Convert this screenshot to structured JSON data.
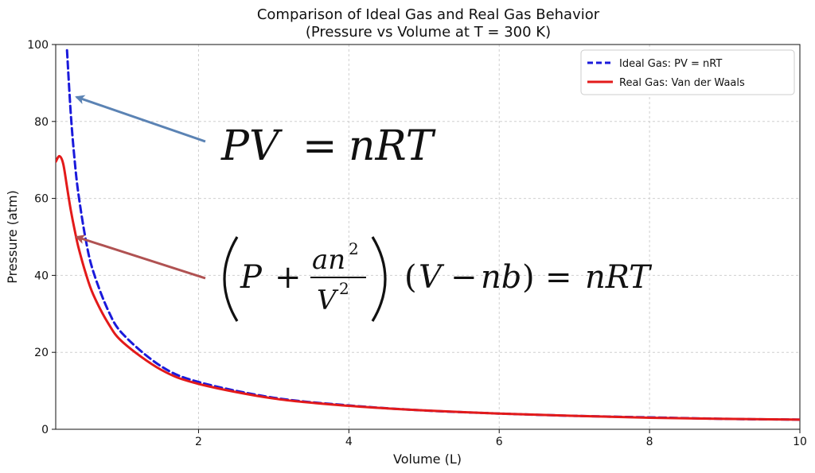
{
  "chart_data": {
    "type": "line",
    "title": "Comparison of Ideal Gas and Real Gas Behavior",
    "subtitle": "(Pressure vs Volume at T = 300 K)",
    "xlabel": "Volume (L)",
    "ylabel": "Pressure (atm)",
    "xlim": [
      0.1,
      10
    ],
    "ylim": [
      0,
      100
    ],
    "xticks": [
      2,
      4,
      6,
      8,
      10
    ],
    "yticks": [
      0,
      20,
      40,
      60,
      80,
      100
    ],
    "grid": true,
    "legend_position": "top-right",
    "series": [
      {
        "name": "Ideal Gas: PV = nRT",
        "color": "#1a1adb",
        "style": "dashed",
        "x": [
          0.25,
          0.3,
          0.35,
          0.4,
          0.5,
          0.6,
          0.8,
          1.0,
          1.5,
          2.0,
          3.0,
          4.0,
          5.0,
          6.0,
          7.0,
          8.0,
          9.0,
          10.0
        ],
        "y": [
          98.5,
          82.1,
          70.3,
          61.5,
          49.2,
          41.0,
          30.8,
          24.6,
          16.4,
          12.3,
          8.2,
          6.2,
          4.9,
          4.1,
          3.5,
          3.1,
          2.7,
          2.5
        ]
      },
      {
        "name": "Real Gas: Van der Waals",
        "color": "#e31a1a",
        "style": "solid",
        "x": [
          0.1,
          0.15,
          0.2,
          0.25,
          0.3,
          0.35,
          0.4,
          0.5,
          0.6,
          0.8,
          1.0,
          1.5,
          2.0,
          3.0,
          4.0,
          5.0,
          6.0,
          7.0,
          8.0,
          9.0,
          10.0
        ],
        "y": [
          69.5,
          71.0,
          69.0,
          63.0,
          57.0,
          52.0,
          47.5,
          40.5,
          35.0,
          27.5,
          22.5,
          15.5,
          11.8,
          8.0,
          6.1,
          4.9,
          4.1,
          3.5,
          3.0,
          2.7,
          2.5
        ]
      }
    ],
    "annotations": [
      {
        "equation": "PV = nRT",
        "points_to": "Ideal Gas: PV = nRT",
        "arrow_color": "#5b83b4"
      },
      {
        "equation": "(P + an²/V²)(V − nb) = nRT",
        "points_to": "Real Gas: Van der Waals",
        "arrow_color": "#b05252"
      }
    ]
  }
}
